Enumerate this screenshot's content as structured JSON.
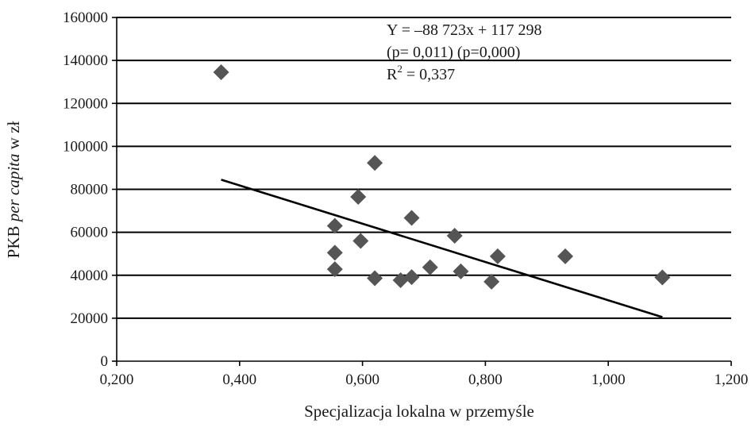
{
  "chart_data": {
    "type": "scatter",
    "title": "",
    "xlabel": "Specjalizacja lokalna w przemyśle",
    "ylabel_parts": [
      "PKB ",
      "per capita",
      " w zł"
    ],
    "xlim": [
      0.2,
      1.2
    ],
    "ylim": [
      0,
      160000
    ],
    "x_ticks": [
      {
        "v": 0.2,
        "label": "0,200"
      },
      {
        "v": 0.4,
        "label": "0,400"
      },
      {
        "v": 0.6,
        "label": "0,600"
      },
      {
        "v": 0.8,
        "label": "0,800"
      },
      {
        "v": 1.0,
        "label": "1,000"
      },
      {
        "v": 1.2,
        "label": "1,200"
      }
    ],
    "y_ticks": [
      {
        "v": 0,
        "label": "0"
      },
      {
        "v": 20000,
        "label": "20000"
      },
      {
        "v": 40000,
        "label": "40000"
      },
      {
        "v": 60000,
        "label": "60000"
      },
      {
        "v": 80000,
        "label": "80000"
      },
      {
        "v": 100000,
        "label": "100000"
      },
      {
        "v": 120000,
        "label": "120000"
      },
      {
        "v": 140000,
        "label": "140000"
      },
      {
        "v": 160000,
        "label": "160000"
      }
    ],
    "grid": true,
    "points": [
      {
        "x": 0.37,
        "y": 134500
      },
      {
        "x": 0.555,
        "y": 63000
      },
      {
        "x": 0.555,
        "y": 50500
      },
      {
        "x": 0.555,
        "y": 42800
      },
      {
        "x": 0.593,
        "y": 76500
      },
      {
        "x": 0.597,
        "y": 56000
      },
      {
        "x": 0.62,
        "y": 92300
      },
      {
        "x": 0.62,
        "y": 38600
      },
      {
        "x": 0.662,
        "y": 37700
      },
      {
        "x": 0.68,
        "y": 66700
      },
      {
        "x": 0.68,
        "y": 39100
      },
      {
        "x": 0.71,
        "y": 43700
      },
      {
        "x": 0.75,
        "y": 58400
      },
      {
        "x": 0.76,
        "y": 41800
      },
      {
        "x": 0.81,
        "y": 37000
      },
      {
        "x": 0.82,
        "y": 48800
      },
      {
        "x": 0.93,
        "y": 48800
      },
      {
        "x": 1.088,
        "y": 39000
      }
    ],
    "trendline": {
      "x": [
        0.37,
        1.088
      ],
      "y": [
        84500,
        20500
      ]
    },
    "annotation": {
      "line1": "Y = –88 723x + 117 298",
      "line2": "(p= 0,011) (p=0,000)",
      "line3_base": "R",
      "line3_sup": "2",
      "line3_rest": " = 0,337"
    },
    "colors": {
      "marker": "#555555",
      "line": "#000000"
    }
  }
}
